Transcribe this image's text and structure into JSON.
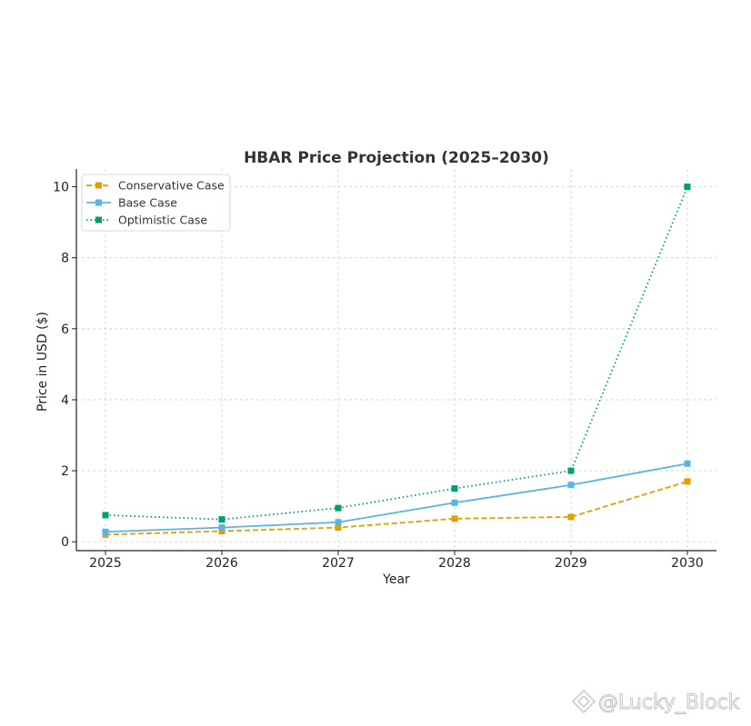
{
  "chart_data": {
    "type": "line",
    "title": "HBAR Price Projection (2025–2030)",
    "xlabel": "Year",
    "ylabel": "Price in USD ($)",
    "x": [
      2025,
      2026,
      2027,
      2028,
      2029,
      2030
    ],
    "xlim": [
      2024.75,
      2030.25
    ],
    "ylim": [
      -0.25,
      10.5
    ],
    "yticks": [
      0,
      2,
      4,
      6,
      8,
      10
    ],
    "grid": true,
    "legend_position": "top-left",
    "series": [
      {
        "name": "Conservative Case",
        "color": "#E69F00",
        "line_style": "dashed",
        "marker": "square",
        "values": [
          0.2,
          0.3,
          0.4,
          0.65,
          0.7,
          1.7
        ]
      },
      {
        "name": "Base Case",
        "color": "#56B4E9",
        "line_style": "solid",
        "marker": "square",
        "values": [
          0.28,
          0.4,
          0.55,
          1.1,
          1.6,
          2.2
        ]
      },
      {
        "name": "Optimistic Case",
        "color": "#009E73",
        "line_style": "dotted",
        "marker": "square",
        "values": [
          0.75,
          0.63,
          0.95,
          1.5,
          2.0,
          10.0
        ]
      }
    ]
  },
  "watermark": {
    "text": "@Lucky_Block"
  }
}
